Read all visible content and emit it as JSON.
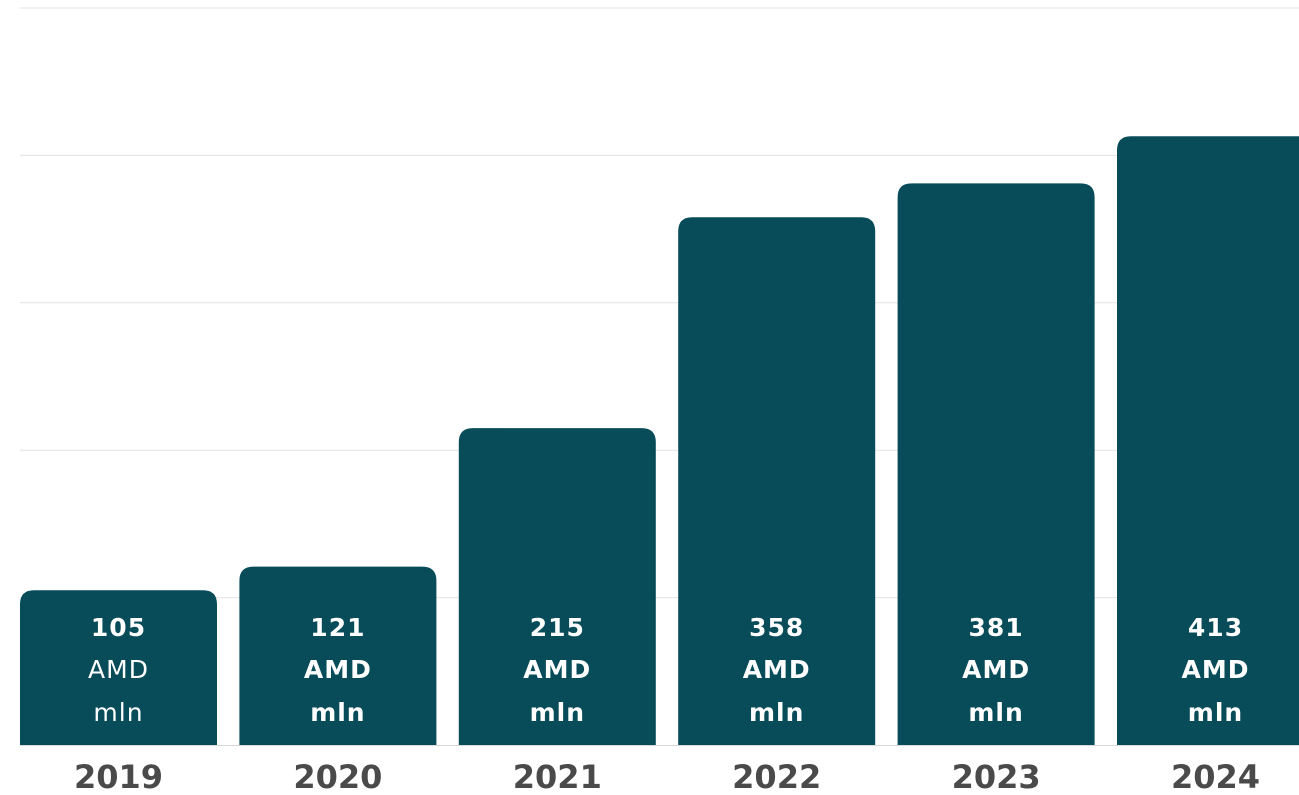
{
  "chart_data": {
    "type": "bar",
    "categories": [
      "2019",
      "2020",
      "2021",
      "2022",
      "2023",
      "2024"
    ],
    "values": [
      105,
      121,
      215,
      358,
      381,
      413
    ],
    "value_labels": [
      {
        "value": "105",
        "currency": "AMD",
        "unit": "mln"
      },
      {
        "value": "121",
        "currency": "AMD",
        "unit": "mln"
      },
      {
        "value": "215",
        "currency": "AMD",
        "unit": "mln"
      },
      {
        "value": "358",
        "currency": "AMD",
        "unit": "mln"
      },
      {
        "value": "381",
        "currency": "AMD",
        "unit": "mln"
      },
      {
        "value": "413",
        "currency": "AMD",
        "unit": "mln"
      }
    ],
    "title": "",
    "xlabel": "",
    "ylabel": "",
    "ylim": [
      0,
      500
    ],
    "grid": true,
    "colors": {
      "bar": "#084c5a",
      "grid": "#e2e2e2",
      "bar_text": "#ffffff",
      "category_text": "#4a4a4a"
    }
  }
}
